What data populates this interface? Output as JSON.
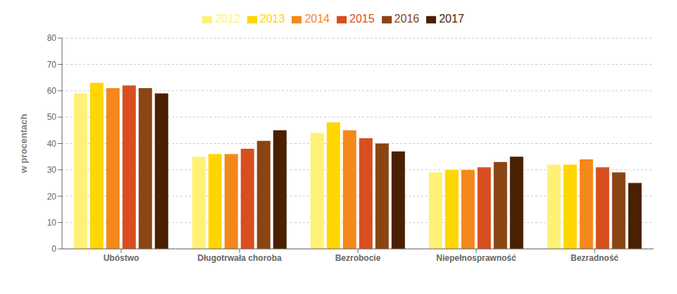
{
  "chart_data": {
    "type": "bar",
    "categories": [
      "Ubóstwo",
      "Długotrwała choroba",
      "Bezrobocie",
      "Niepełnosprawność",
      "Bezradność"
    ],
    "series": [
      {
        "name": "2012",
        "color": "#FFF176",
        "values": [
          59,
          35,
          44,
          29,
          32
        ]
      },
      {
        "name": "2013",
        "color": "#FFD600",
        "values": [
          63,
          36,
          48,
          30,
          32
        ]
      },
      {
        "name": "2014",
        "color": "#F4881A",
        "values": [
          61,
          36,
          45,
          30,
          34
        ]
      },
      {
        "name": "2015",
        "color": "#D94E1F",
        "values": [
          62,
          38,
          42,
          31,
          31
        ]
      },
      {
        "name": "2016",
        "color": "#8B4513",
        "values": [
          61,
          41,
          40,
          33,
          29
        ]
      },
      {
        "name": "2017",
        "color": "#4A2000",
        "values": [
          59,
          45,
          37,
          35,
          25
        ]
      }
    ],
    "ylabel": "w procentach",
    "ylim": [
      0,
      80
    ],
    "yticks": [
      0,
      10,
      20,
      30,
      40,
      50,
      60,
      70,
      80
    ],
    "grid": true,
    "legend": "top"
  }
}
